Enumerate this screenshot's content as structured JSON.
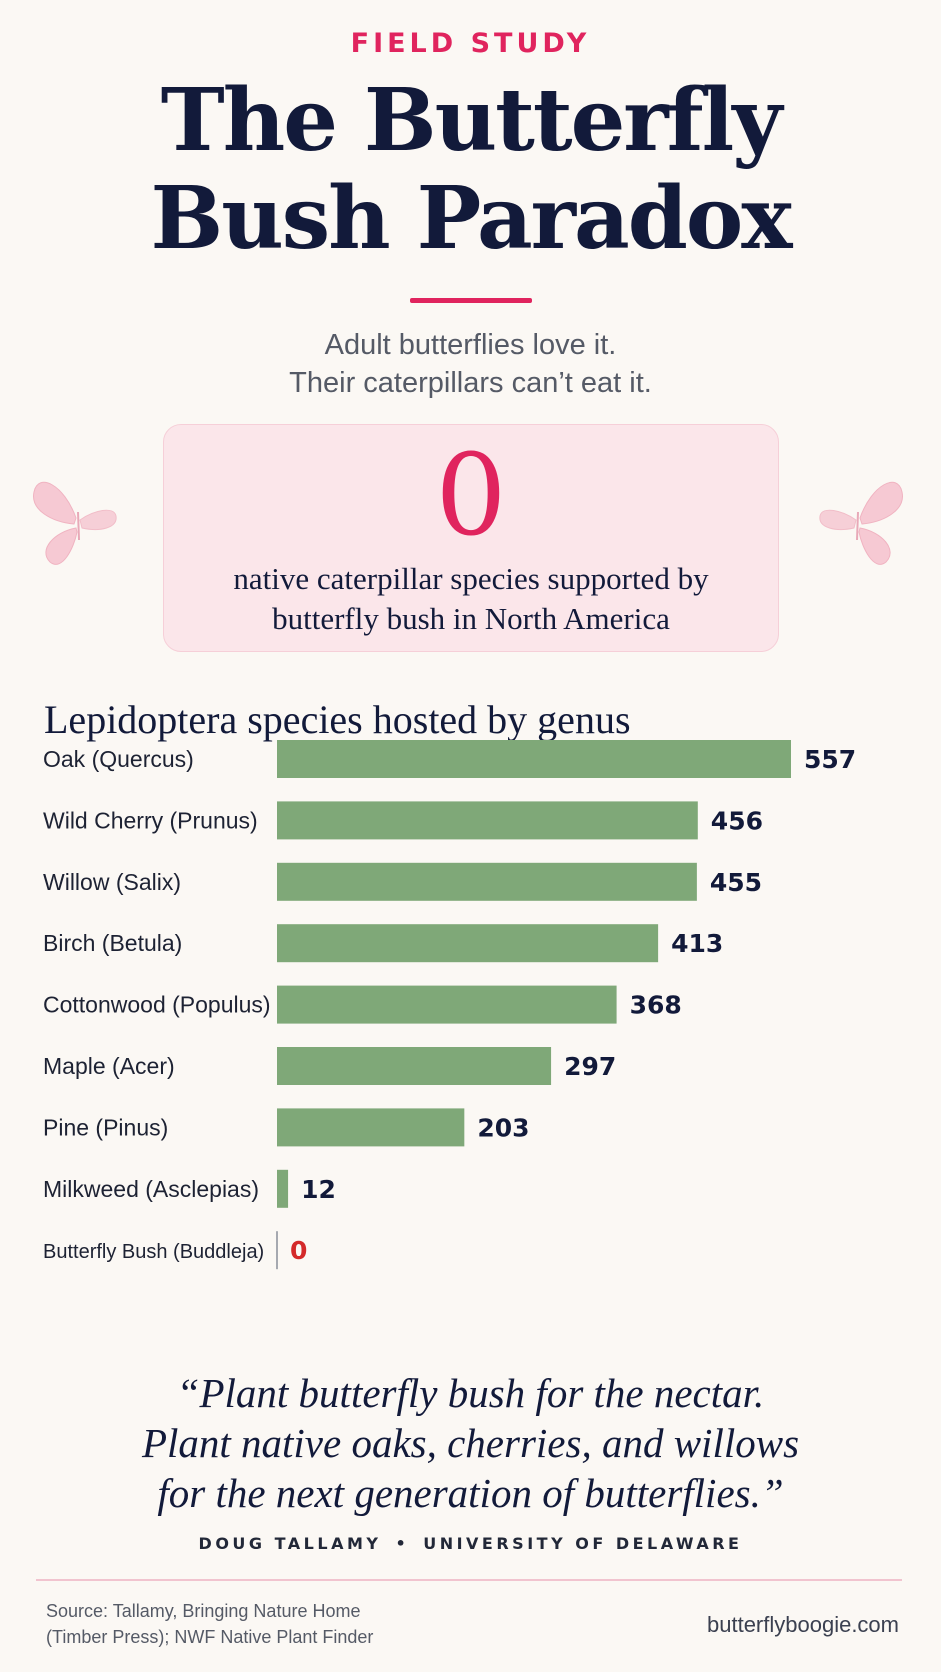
{
  "header": {
    "eyebrow": "FIELD STUDY",
    "title_line1": "The Butterfly",
    "title_line2": "Bush Paradox",
    "subtitle_line1": "Adult butterflies love it.",
    "subtitle_line2": "Their caterpillars can’t eat it."
  },
  "stat": {
    "number": "0",
    "label_line1": "native caterpillar species supported by",
    "label_line2": "butterfly bush in North America"
  },
  "chart_data": {
    "type": "bar",
    "orientation": "horizontal",
    "title": "Lepidoptera species hosted by genus",
    "categories": [
      "Oak (Quercus)",
      "Wild Cherry (Prunus)",
      "Willow (Salix)",
      "Birch (Betula)",
      "Cottonwood (Populus)",
      "Maple (Acer)",
      "Pine (Pinus)",
      "Milkweed (Asclepias)",
      "Butterfly Bush (Buddleja)"
    ],
    "values": [
      557,
      456,
      455,
      413,
      368,
      297,
      203,
      12,
      0
    ],
    "xlim": [
      0,
      557
    ],
    "grid": false,
    "legend": "none",
    "bar_color": "#7fa878",
    "highlight_color": "#d42a2a"
  },
  "quote": {
    "line1": "“Plant butterfly bush for the nectar.",
    "line2": "Plant native oaks, cherries, and willows",
    "line3": "for the next generation of butterflies.”",
    "author": "DOUG TALLAMY",
    "separator": "•",
    "affiliation": "UNIVERSITY OF DELAWARE"
  },
  "footer": {
    "source_line1": "Source: Tallamy, Bringing Nature Home",
    "source_line2": "(Timber Press); NWF Native Plant Finder",
    "site": "butterflyboogie.com"
  },
  "colors": {
    "accent": "#e0245e",
    "ink": "#121a3a",
    "background": "#fbf8f4",
    "stat_box": "#fbe6ea"
  }
}
